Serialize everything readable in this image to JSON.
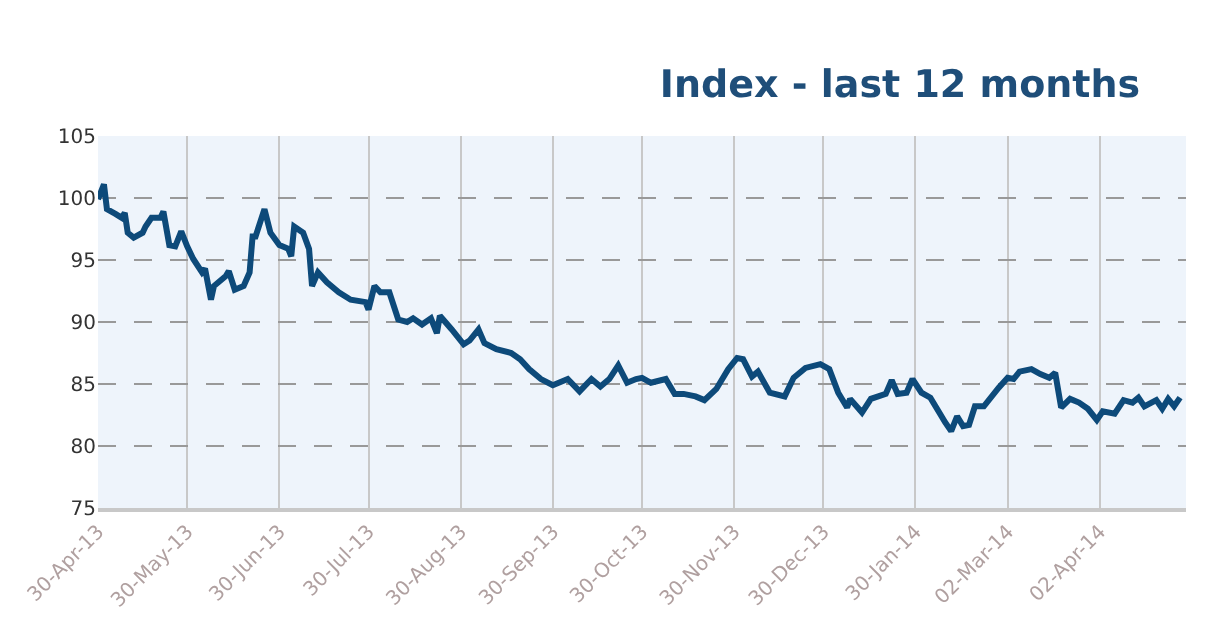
{
  "chart_data": {
    "type": "line",
    "title": "Index - last 12 months",
    "x": [
      "2013-04-30",
      "2013-05-02",
      "2013-05-03",
      "2013-05-06",
      "2013-05-08",
      "2013-05-09",
      "2013-05-10",
      "2013-05-12",
      "2013-05-15",
      "2013-05-16",
      "2013-05-18",
      "2013-05-21",
      "2013-05-22",
      "2013-05-24",
      "2013-05-26",
      "2013-05-28",
      "2013-05-30",
      "2013-06-01",
      "2013-06-04",
      "2013-06-05",
      "2013-06-07",
      "2013-06-08",
      "2013-06-12",
      "2013-06-13",
      "2013-06-15",
      "2013-06-18",
      "2013-06-20",
      "2013-06-21",
      "2013-06-22",
      "2013-06-25",
      "2013-06-27",
      "2013-06-30",
      "2013-07-03",
      "2013-07-04",
      "2013-07-05",
      "2013-07-08",
      "2013-07-10",
      "2013-07-11",
      "2013-07-13",
      "2013-07-16",
      "2013-07-20",
      "2013-07-24",
      "2013-07-29",
      "2013-07-30",
      "2013-08-01",
      "2013-08-03",
      "2013-08-06",
      "2013-08-09",
      "2013-08-12",
      "2013-08-14",
      "2013-08-17",
      "2013-08-20",
      "2013-08-22",
      "2013-08-23",
      "2013-08-27",
      "2013-08-31",
      "2013-09-02",
      "2013-09-05",
      "2013-09-07",
      "2013-09-11",
      "2013-09-16",
      "2013-09-19",
      "2013-09-22",
      "2013-09-26",
      "2013-09-30",
      "2013-10-05",
      "2013-10-09",
      "2013-10-13",
      "2013-10-16",
      "2013-10-19",
      "2013-10-22",
      "2013-10-25",
      "2013-10-28",
      "2013-10-30",
      "2013-11-02",
      "2013-11-07",
      "2013-11-10",
      "2013-11-13",
      "2013-11-17",
      "2013-11-20",
      "2013-11-24",
      "2013-11-28",
      "2013-12-01",
      "2013-12-03",
      "2013-12-06",
      "2013-12-08",
      "2013-12-12",
      "2013-12-17",
      "2013-12-20",
      "2013-12-24",
      "2013-12-29",
      "2014-01-01",
      "2014-01-04",
      "2014-01-07",
      "2014-01-08",
      "2014-01-12",
      "2014-01-15",
      "2014-01-20",
      "2014-01-22",
      "2014-01-24",
      "2014-01-27",
      "2014-01-29",
      "2014-02-01",
      "2014-02-04",
      "2014-02-07",
      "2014-02-09",
      "2014-02-11",
      "2014-02-13",
      "2014-02-15",
      "2014-02-17",
      "2014-02-19",
      "2014-02-22",
      "2014-02-27",
      "2014-03-02",
      "2014-03-04",
      "2014-03-06",
      "2014-03-10",
      "2014-03-13",
      "2014-03-16",
      "2014-03-18",
      "2014-03-20",
      "2014-03-23",
      "2014-03-26",
      "2014-03-29",
      "2014-04-01",
      "2014-04-03",
      "2014-04-07",
      "2014-04-10",
      "2014-04-13",
      "2014-04-15",
      "2014-04-17",
      "2014-04-21",
      "2014-04-23",
      "2014-04-25",
      "2014-04-27",
      "2014-04-29"
    ],
    "series": [
      {
        "color": "#0d4a7a",
        "values": [
          99.9,
          101.1,
          99.1,
          98.7,
          98.4,
          98.8,
          97.2,
          96.8,
          97.2,
          97.7,
          98.4,
          98.4,
          98.9,
          96.2,
          96.1,
          97.3,
          96.1,
          95.1,
          94.0,
          94.3,
          91.8,
          92.9,
          93.7,
          94.1,
          92.6,
          92.9,
          94.0,
          96.9,
          96.9,
          99.1,
          97.2,
          96.2,
          95.9,
          95.3,
          97.7,
          97.2,
          95.9,
          92.9,
          94.0,
          93.2,
          92.4,
          91.8,
          91.6,
          91.0,
          92.9,
          92.4,
          92.4,
          90.2,
          90.0,
          90.3,
          89.8,
          90.3,
          89.1,
          90.5,
          89.4,
          88.2,
          88.5,
          89.4,
          88.3,
          87.8,
          87.5,
          87.0,
          86.2,
          85.4,
          84.9,
          85.4,
          84.4,
          85.4,
          84.8,
          85.4,
          86.5,
          85.1,
          85.4,
          85.5,
          85.1,
          85.4,
          84.2,
          84.2,
          84.0,
          83.7,
          84.6,
          86.2,
          87.1,
          87.0,
          85.6,
          86.0,
          84.3,
          84.0,
          85.5,
          86.3,
          86.6,
          86.2,
          84.3,
          83.1,
          83.8,
          82.7,
          83.8,
          84.2,
          85.3,
          84.2,
          84.3,
          85.4,
          84.3,
          83.9,
          82.7,
          81.9,
          81.2,
          82.4,
          81.6,
          81.7,
          83.2,
          83.2,
          84.7,
          85.5,
          85.4,
          86.0,
          86.2,
          85.8,
          85.5,
          85.9,
          83.1,
          83.8,
          83.5,
          83.0,
          82.1,
          82.8,
          82.6,
          83.7,
          83.5,
          83.9,
          83.2,
          83.7,
          83.0,
          83.8,
          83.2,
          83.9
        ]
      }
    ],
    "xlim": [
      "2013-04-30",
      "2014-05-01"
    ],
    "xticks": [
      {
        "value": "2013-04-30",
        "label": "30-Apr-13"
      },
      {
        "value": "2013-05-30",
        "label": "30-May-13"
      },
      {
        "value": "2013-06-30",
        "label": "30-Jun-13"
      },
      {
        "value": "2013-07-30",
        "label": "30-Jul-13"
      },
      {
        "value": "2013-08-30",
        "label": "30-Aug-13"
      },
      {
        "value": "2013-09-30",
        "label": "30-Sep-13"
      },
      {
        "value": "2013-10-30",
        "label": "30-Oct-13"
      },
      {
        "value": "2013-11-30",
        "label": "30-Nov-13"
      },
      {
        "value": "2013-12-30",
        "label": "30-Dec-13"
      },
      {
        "value": "2014-01-30",
        "label": "30-Jan-14"
      },
      {
        "value": "2014-03-02",
        "label": "02-Mar-14"
      },
      {
        "value": "2014-04-02",
        "label": "02-Apr-14"
      }
    ],
    "ylim": [
      75,
      105
    ],
    "yticks": [
      75,
      80,
      85,
      90,
      95,
      100,
      105
    ],
    "grid": true,
    "marker": "none",
    "line_style": "solid"
  }
}
